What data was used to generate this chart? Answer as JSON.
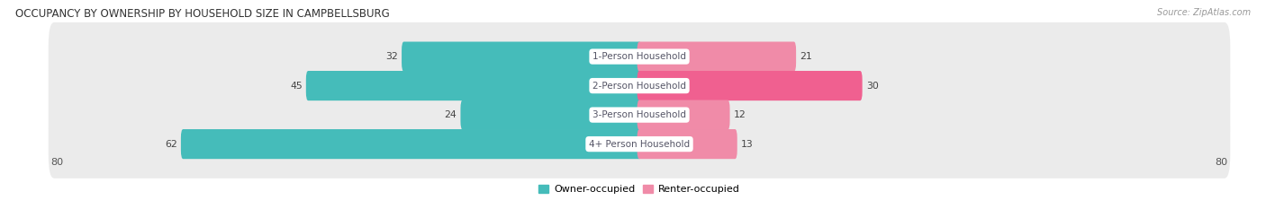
{
  "title": "OCCUPANCY BY OWNERSHIP BY HOUSEHOLD SIZE IN CAMPBELLSBURG",
  "source": "Source: ZipAtlas.com",
  "categories": [
    "1-Person Household",
    "2-Person Household",
    "3-Person Household",
    "4+ Person Household"
  ],
  "owner_values": [
    32,
    45,
    24,
    62
  ],
  "renter_values": [
    21,
    30,
    12,
    13
  ],
  "max_scale": 80,
  "owner_color": "#45BCBA",
  "renter_color": "#F08BA8",
  "renter_color_2": "#F06090",
  "bg_row_color": "#EBEBEB",
  "label_bg_color": "#FFFFFF",
  "legend_owner_label": "Owner-occupied",
  "legend_renter_label": "Renter-occupied",
  "figsize": [
    14.06,
    2.33
  ],
  "dpi": 100,
  "value_label_color": "#444444",
  "category_label_color": "#555566"
}
